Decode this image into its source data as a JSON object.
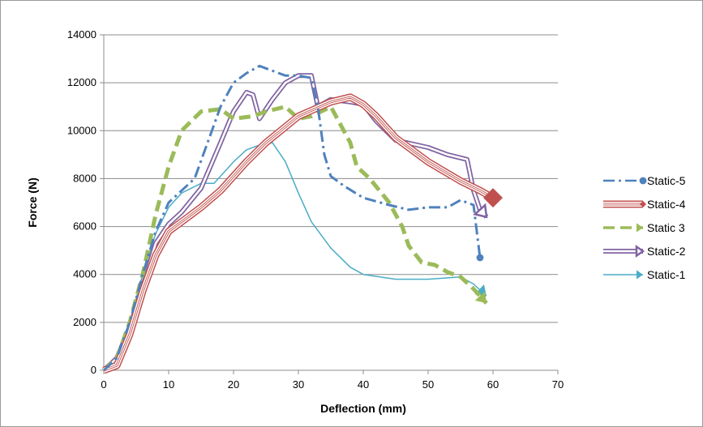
{
  "chart_data": {
    "type": "line",
    "xlabel": "Deflection (mm)",
    "ylabel": "Force (N)",
    "xlim": [
      0,
      70
    ],
    "ylim": [
      0,
      14000
    ],
    "x_ticks": [
      "0",
      "10",
      "20",
      "30",
      "40",
      "50",
      "60",
      "70"
    ],
    "y_ticks": [
      "0",
      "2000",
      "4000",
      "6000",
      "8000",
      "10000",
      "12000",
      "14000"
    ],
    "grid": "horizontal",
    "legend_position": "right",
    "series": [
      {
        "name": "Static-5",
        "color": "#4f81bd",
        "style": "dash-dot",
        "marker": "circle",
        "points": [
          [
            0,
            0
          ],
          [
            2,
            500
          ],
          [
            4,
            2000
          ],
          [
            6,
            4000
          ],
          [
            8,
            5800
          ],
          [
            10,
            7000
          ],
          [
            14,
            8000
          ],
          [
            16,
            9500
          ],
          [
            18,
            11000
          ],
          [
            20,
            12000
          ],
          [
            22,
            12400
          ],
          [
            24,
            12700
          ],
          [
            26,
            12500
          ],
          [
            28,
            12300
          ],
          [
            30,
            12300
          ],
          [
            32,
            12200
          ],
          [
            33,
            11000
          ],
          [
            34,
            9000
          ],
          [
            35,
            8100
          ],
          [
            37,
            7700
          ],
          [
            40,
            7200
          ],
          [
            44,
            6900
          ],
          [
            47,
            6700
          ],
          [
            50,
            6800
          ],
          [
            53,
            6800
          ],
          [
            55,
            7100
          ],
          [
            57,
            6900
          ],
          [
            58,
            4700
          ]
        ]
      },
      {
        "name": "Static-4",
        "color": "#c0504d",
        "style": "triple-line",
        "marker": "diamond",
        "points": [
          [
            0,
            0
          ],
          [
            2,
            200
          ],
          [
            4,
            1500
          ],
          [
            6,
            3300
          ],
          [
            8,
            4800
          ],
          [
            10,
            5800
          ],
          [
            12,
            6200
          ],
          [
            15,
            6800
          ],
          [
            18,
            7500
          ],
          [
            22,
            8700
          ],
          [
            25,
            9500
          ],
          [
            30,
            10600
          ],
          [
            35,
            11200
          ],
          [
            38,
            11400
          ],
          [
            40,
            11100
          ],
          [
            42,
            10600
          ],
          [
            45,
            9700
          ],
          [
            50,
            8700
          ],
          [
            55,
            7900
          ],
          [
            58,
            7500
          ],
          [
            60,
            7200
          ]
        ]
      },
      {
        "name": "Static 3",
        "color": "#9bbb59",
        "style": "dashed",
        "marker": "arrow",
        "points": [
          [
            0,
            0
          ],
          [
            2,
            500
          ],
          [
            4,
            2000
          ],
          [
            6,
            4000
          ],
          [
            8,
            6500
          ],
          [
            10,
            8500
          ],
          [
            12,
            10000
          ],
          [
            15,
            10800
          ],
          [
            18,
            10900
          ],
          [
            20,
            10500
          ],
          [
            23,
            10600
          ],
          [
            25,
            10800
          ],
          [
            28,
            11000
          ],
          [
            30,
            10500
          ],
          [
            32,
            10600
          ],
          [
            35,
            11000
          ],
          [
            37,
            10000
          ],
          [
            38,
            9500
          ],
          [
            39,
            8500
          ],
          [
            41,
            8000
          ],
          [
            44,
            7000
          ],
          [
            46,
            6000
          ],
          [
            47,
            5200
          ],
          [
            49,
            4500
          ],
          [
            51,
            4400
          ],
          [
            53,
            4100
          ],
          [
            55,
            3900
          ],
          [
            57,
            3400
          ],
          [
            59,
            2800
          ]
        ]
      },
      {
        "name": "Static-2",
        "color": "#8064a2",
        "style": "double-line",
        "marker": "arrow",
        "points": [
          [
            0,
            0
          ],
          [
            2,
            500
          ],
          [
            4,
            1800
          ],
          [
            6,
            3500
          ],
          [
            8,
            5300
          ],
          [
            10,
            6100
          ],
          [
            12,
            6600
          ],
          [
            15,
            7600
          ],
          [
            18,
            9500
          ],
          [
            20,
            10800
          ],
          [
            22,
            11600
          ],
          [
            23,
            11500
          ],
          [
            24,
            10500
          ],
          [
            26,
            11300
          ],
          [
            28,
            12000
          ],
          [
            30,
            12300
          ],
          [
            32,
            12300
          ],
          [
            33,
            11000
          ],
          [
            35,
            11300
          ],
          [
            38,
            11200
          ],
          [
            40,
            11100
          ],
          [
            42,
            10400
          ],
          [
            45,
            9600
          ],
          [
            50,
            9300
          ],
          [
            53,
            9000
          ],
          [
            56,
            8800
          ],
          [
            57,
            7500
          ],
          [
            58,
            6700
          ],
          [
            59,
            6400
          ]
        ]
      },
      {
        "name": "Static-1",
        "color": "#4bacc6",
        "style": "solid-thin",
        "marker": "arrow",
        "points": [
          [
            0,
            0
          ],
          [
            2,
            500
          ],
          [
            4,
            2000
          ],
          [
            6,
            4000
          ],
          [
            8,
            5700
          ],
          [
            10,
            6800
          ],
          [
            12,
            7400
          ],
          [
            15,
            7800
          ],
          [
            17,
            7800
          ],
          [
            20,
            8700
          ],
          [
            22,
            9200
          ],
          [
            24,
            9400
          ],
          [
            26,
            9500
          ],
          [
            28,
            8700
          ],
          [
            30,
            7400
          ],
          [
            32,
            6200
          ],
          [
            35,
            5100
          ],
          [
            38,
            4300
          ],
          [
            40,
            4000
          ],
          [
            45,
            3800
          ],
          [
            50,
            3800
          ],
          [
            55,
            3900
          ],
          [
            57,
            3600
          ],
          [
            59,
            3100
          ]
        ]
      }
    ]
  }
}
